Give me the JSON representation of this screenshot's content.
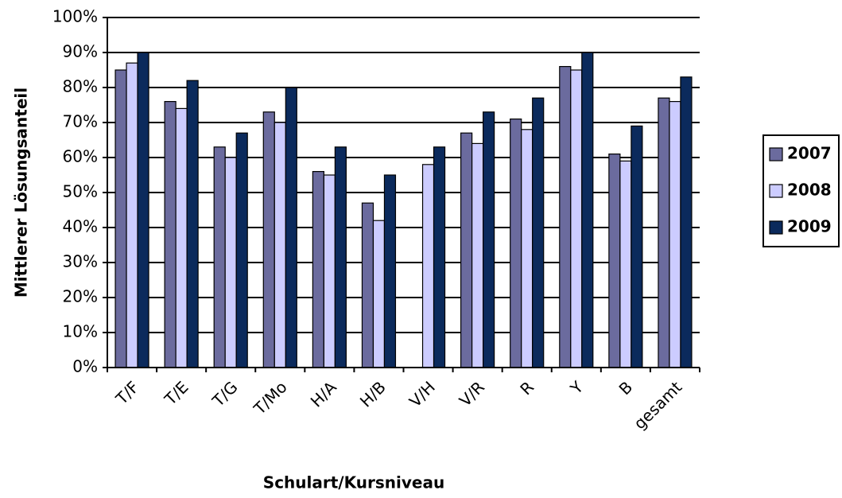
{
  "chart_data": {
    "type": "bar",
    "y_label": "Mittlerer Lösungsanteil",
    "x_label": "Schulart/Kursniveau",
    "categories": [
      "T/F",
      "T/E",
      "T/G",
      "T/Mo",
      "H/A",
      "H/B",
      "V/H",
      "V/R",
      "R",
      "Y",
      "B",
      "gesamt"
    ],
    "series": [
      {
        "name": "2007",
        "color": "#6b6b9e",
        "values": [
          85,
          76,
          63,
          73,
          56,
          47,
          null,
          67,
          71,
          86,
          61,
          77
        ]
      },
      {
        "name": "2008",
        "color": "#ccccff",
        "values": [
          87,
          74,
          60,
          70,
          55,
          42,
          58,
          64,
          68,
          85,
          59,
          76
        ]
      },
      {
        "name": "2009",
        "color": "#0b2a5c",
        "values": [
          90,
          82,
          67,
          80,
          63,
          55,
          63,
          73,
          77,
          90,
          69,
          83
        ]
      }
    ],
    "ylim": [
      0,
      100
    ],
    "yticks": [
      {
        "value": 0,
        "label": "0%"
      },
      {
        "value": 10,
        "label": "10%"
      },
      {
        "value": 20,
        "label": "20%"
      },
      {
        "value": 30,
        "label": "30%"
      },
      {
        "value": 40,
        "label": "40%"
      },
      {
        "value": 50,
        "label": "50%"
      },
      {
        "value": 60,
        "label": "60%"
      },
      {
        "value": 70,
        "label": "70%"
      },
      {
        "value": 80,
        "label": "80%"
      },
      {
        "value": 90,
        "label": "90%"
      },
      {
        "value": 100,
        "label": "100%"
      }
    ],
    "grid": true,
    "legend": "right"
  }
}
